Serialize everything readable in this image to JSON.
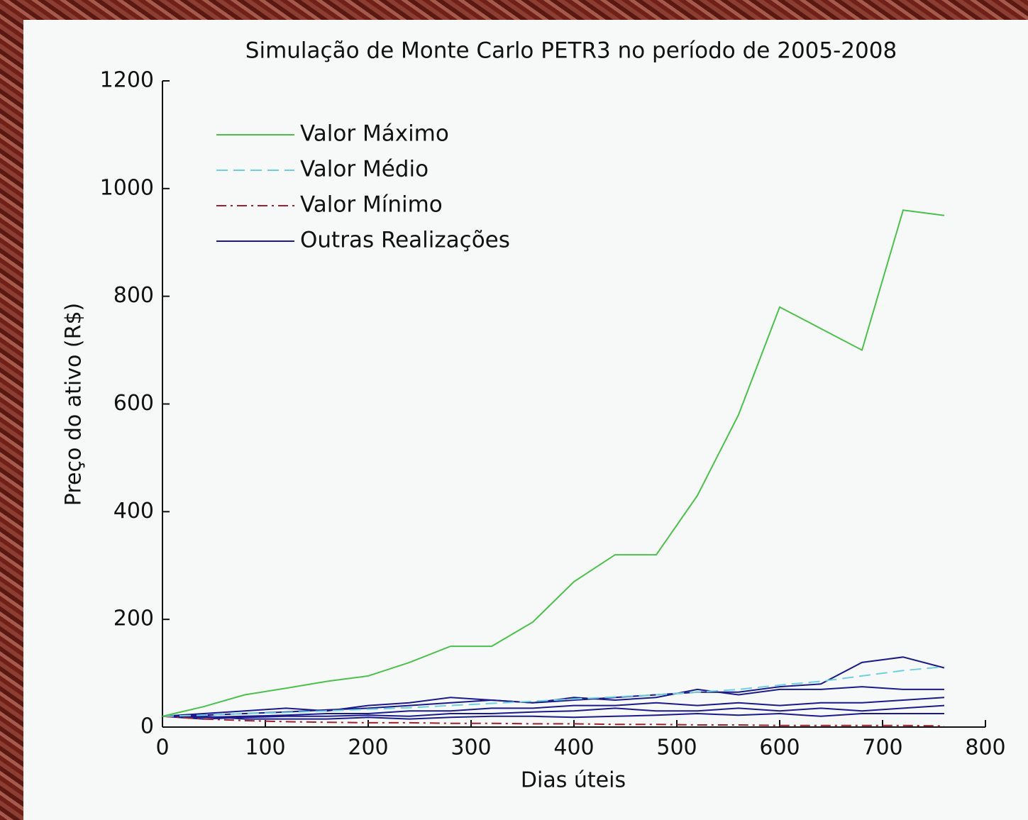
{
  "chart_data": {
    "type": "line",
    "title": "Simulação de Monte Carlo PETR3 no período de 2005-2008",
    "x_label": "Dias úteis",
    "y_label": "Preço do ativo (R$)",
    "x": [
      0,
      40,
      80,
      120,
      160,
      200,
      240,
      280,
      320,
      360,
      400,
      440,
      480,
      520,
      560,
      600,
      640,
      680,
      720,
      760
    ],
    "series": [
      {
        "name": "Valor Máximo",
        "color": "#4cc04c",
        "dash": "solid",
        "values": [
          20,
          38,
          60,
          72,
          85,
          95,
          120,
          150,
          150,
          195,
          270,
          320,
          320,
          430,
          580,
          780,
          740,
          700,
          960,
          950
        ]
      },
      {
        "name": "Valor Médio",
        "color": "#6fd0e0",
        "dash": "dashed",
        "values": [
          20,
          22,
          25,
          27,
          30,
          33,
          36,
          40,
          44,
          48,
          52,
          56,
          60,
          65,
          70,
          78,
          85,
          95,
          105,
          112
        ]
      },
      {
        "name": "Valor Mínimo",
        "color": "#a02030",
        "dash": "dashdot",
        "values": [
          20,
          15,
          12,
          10,
          9,
          8,
          8,
          7,
          7,
          6,
          6,
          5,
          5,
          4,
          4,
          3,
          3,
          3,
          3,
          2
        ]
      },
      {
        "name": "Outras Realizações",
        "color": "#1a1a8c",
        "dash": "solid",
        "values": [
          20,
          22,
          25,
          28,
          32,
          35,
          40,
          45,
          50,
          45,
          50,
          55,
          60,
          65,
          65,
          75,
          80,
          120,
          130,
          110
        ]
      },
      {
        "color": "#1a1a8c",
        "dash": "solid",
        "values": [
          20,
          25,
          30,
          35,
          30,
          40,
          45,
          55,
          50,
          45,
          55,
          50,
          55,
          70,
          60,
          70,
          70,
          75,
          70,
          70
        ]
      },
      {
        "color": "#1a1a8c",
        "dash": "solid",
        "values": [
          20,
          18,
          20,
          22,
          25,
          25,
          30,
          30,
          35,
          35,
          40,
          40,
          45,
          40,
          45,
          40,
          45,
          45,
          50,
          55
        ]
      },
      {
        "color": "#1a1a8c",
        "dash": "solid",
        "values": [
          20,
          15,
          18,
          20,
          20,
          22,
          20,
          25,
          25,
          28,
          30,
          35,
          30,
          30,
          35,
          30,
          35,
          30,
          35,
          40
        ]
      },
      {
        "color": "#1a1a8c",
        "dash": "solid",
        "values": [
          20,
          20,
          15,
          15,
          15,
          18,
          15,
          18,
          20,
          20,
          18,
          20,
          22,
          25,
          22,
          25,
          20,
          25,
          25,
          25
        ]
      }
    ],
    "xlim": [
      0,
      800
    ],
    "xticks": [
      0,
      100,
      200,
      300,
      400,
      500,
      600,
      700,
      800
    ],
    "ylim": [
      0,
      1200
    ],
    "yticks": [
      0,
      200,
      400,
      600,
      800,
      1000,
      1200
    ],
    "legend": "upper-left"
  }
}
